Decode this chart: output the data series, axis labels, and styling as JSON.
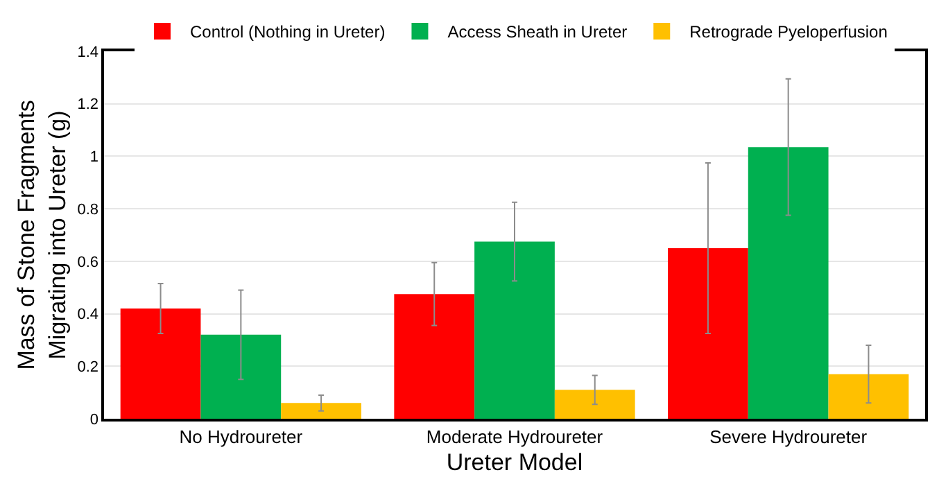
{
  "chart_data": {
    "type": "bar",
    "xlabel": "Ureter Model",
    "ylabel": "Mass of Stone Fragments\nMigrating into Ureter (g)",
    "categories": [
      "No Hydroureter",
      "Moderate Hydroureter",
      "Severe Hydroureter"
    ],
    "series": [
      {
        "name": "Control (Nothing in Ureter)",
        "color": "#ff0000",
        "values": [
          0.42,
          0.475,
          0.65
        ],
        "errors": [
          0.095,
          0.12,
          0.325
        ]
      },
      {
        "name": "Access Sheath in Ureter",
        "color": "#00b050",
        "values": [
          0.32,
          0.675,
          1.035
        ],
        "errors": [
          0.17,
          0.15,
          0.26
        ]
      },
      {
        "name": "Retrograde Pyeloperfusion",
        "color": "#ffc000",
        "values": [
          0.06,
          0.11,
          0.17
        ],
        "errors": [
          0.03,
          0.055,
          0.11
        ]
      }
    ],
    "ylim": [
      0,
      1.4
    ],
    "yticks": [
      0,
      0.2,
      0.4,
      0.6,
      0.8,
      1,
      1.2,
      1.4
    ],
    "grid": "y",
    "legend": "top"
  }
}
